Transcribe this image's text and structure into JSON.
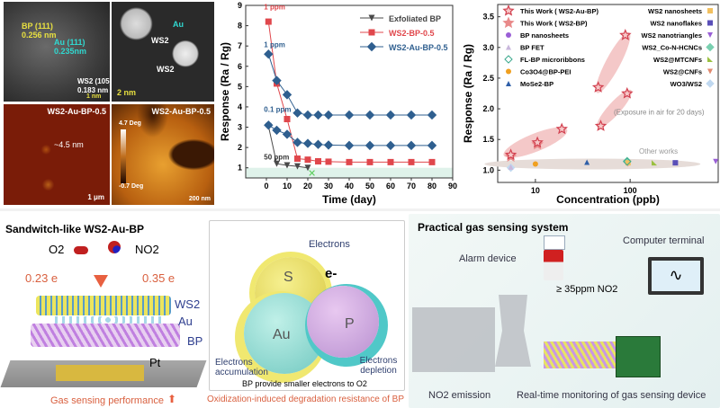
{
  "micrographs": {
    "tem": {
      "bp_label": "BP (111)",
      "bp_spacing": "0.256 nm",
      "au_label": "Au (111)",
      "au_spacing": "0.235nm",
      "ws2_label": "WS2 (105)",
      "ws2_spacing": "0.183 nm",
      "scale": "1 nm"
    },
    "haadf": {
      "au_label": "Au",
      "ws2_label_1": "WS2",
      "ws2_label_2": "WS2",
      "scale": "2 nm"
    },
    "afm_height": {
      "title": "WS2-Au-BP-0.5",
      "thickness": "~4.5 nm",
      "scale": "1 μm"
    },
    "afm_phase": {
      "title": "WS2-Au-BP-0.5",
      "scale_max": "4.7 Deg",
      "scale_min": "-0.7 Deg",
      "scale": "200 nm"
    }
  },
  "chart_data": [
    {
      "type": "line",
      "xlabel": "Time (day)",
      "ylabel": "Response (Ra / Rg)",
      "xlim": [
        -10,
        90
      ],
      "ylim": [
        0.5,
        9
      ],
      "xticks": [
        0,
        10,
        20,
        30,
        40,
        50,
        60,
        70,
        80,
        90
      ],
      "yticks": [
        1,
        2,
        3,
        4,
        5,
        6,
        7,
        8,
        9
      ],
      "legend": "top-right",
      "annotations": [
        "1 ppm",
        "1 ppm",
        "0.1 ppm",
        "50 ppm"
      ],
      "series": [
        {
          "name": "Exfoliated BP",
          "color": "#4a4a4a",
          "marker": "triangle-down",
          "x": [
            1,
            5,
            10,
            15,
            20
          ],
          "y": [
            3.05,
            1.2,
            1.12,
            1.07,
            1.0
          ],
          "failure_x": 22,
          "failure_y": 0.75
        },
        {
          "name": "WS2-BP-0.5",
          "color": "#e0474c",
          "marker": "square",
          "x": [
            1,
            5,
            10,
            15,
            20,
            25,
            30,
            40,
            50,
            60,
            70,
            80
          ],
          "y": [
            8.2,
            5.15,
            3.4,
            1.45,
            1.4,
            1.32,
            1.3,
            1.28,
            1.28,
            1.28,
            1.28,
            1.28
          ]
        },
        {
          "name": "WS2-Au-BP-0.5",
          "color": "#2f5f8f",
          "marker": "diamond",
          "x": [
            1,
            5,
            10,
            15,
            20,
            25,
            30,
            40,
            50,
            60,
            70,
            80
          ],
          "y": [
            6.6,
            5.3,
            4.6,
            3.7,
            3.6,
            3.6,
            3.6,
            3.6,
            3.6,
            3.6,
            3.6,
            3.6
          ]
        },
        {
          "name": "",
          "color": "#2f5f8f",
          "marker": "diamond",
          "x": [
            1,
            5,
            10,
            15,
            20,
            25,
            30,
            40,
            50,
            60,
            70,
            80
          ],
          "y": [
            3.1,
            2.85,
            2.65,
            2.25,
            2.2,
            2.15,
            2.12,
            2.1,
            2.1,
            2.1,
            2.1,
            2.1
          ]
        }
      ]
    },
    {
      "type": "scatter",
      "xlabel": "Concentration (ppb)",
      "ylabel": "Response (Ra / Rg)",
      "xscale": "log",
      "xlim": [
        4,
        850
      ],
      "ylim": [
        0.8,
        3.7
      ],
      "xticks": [
        10,
        100
      ],
      "yticks": [
        1.0,
        1.5,
        2.0,
        2.5,
        3.0,
        3.5
      ],
      "annotations": [
        "(Exposure in air for 20 days)",
        "Other works"
      ],
      "series": [
        {
          "name": "This Work ( WS2-Au-BP)",
          "color": "#d2404f",
          "marker": "star-open",
          "x": [
            5.5,
            10.5,
            19,
            46,
            89,
            49,
            93
          ],
          "y": [
            1.25,
            1.45,
            1.67,
            2.35,
            3.2,
            1.72,
            2.25
          ]
        },
        {
          "name": "This Work ( WS2-BP)",
          "color": "#e98a8a",
          "marker": "star",
          "x": [
            5.5,
            10.5
          ],
          "y": [
            1.22,
            1.42
          ]
        },
        {
          "name": "BP nanosheets",
          "color": "#9a5fd6",
          "marker": "circle",
          "x": [
            93
          ],
          "y": [
            2.24
          ]
        },
        {
          "name": "BP FET",
          "color": "#c9b7dc",
          "marker": "triangle",
          "x": [
            5.5
          ],
          "y": [
            1.05
          ]
        },
        {
          "name": "FL-BP microribbons",
          "color": "#3aa88c",
          "marker": "diamond-open",
          "x": [
            93
          ],
          "y": [
            1.14
          ]
        },
        {
          "name": "Co3O4@BP-PEI",
          "color": "#f0a020",
          "marker": "circle",
          "x": [
            10
          ],
          "y": [
            1.1
          ]
        },
        {
          "name": "MoSe2-BP",
          "color": "#2f5fa8",
          "marker": "triangle",
          "x": [
            35
          ],
          "y": [
            1.13
          ]
        },
        {
          "name": "WS2 nanosheets",
          "color": "#f2c060",
          "marker": "square",
          "x": [
            95
          ],
          "y": [
            1.12
          ]
        },
        {
          "name": "WS2 nanoflakes",
          "color": "#5a4fb8",
          "marker": "square",
          "x": [
            300
          ],
          "y": [
            1.12
          ]
        },
        {
          "name": "WS2 nanotriangles",
          "color": "#9a5fd6",
          "marker": "triangle-down",
          "x": [
            800
          ],
          "y": [
            1.14
          ]
        },
        {
          "name": "WS2_Co-N-HCNCs",
          "color": "#7ad0b0",
          "marker": "diamond",
          "x": [
            93
          ],
          "y": [
            1.15
          ]
        },
        {
          "name": "WS2@MTCNFs",
          "color": "#9ac040",
          "marker": "triangle-right",
          "x": [
            180
          ],
          "y": [
            1.12
          ]
        },
        {
          "name": "WS2@CNFs",
          "color": "#e08a70",
          "marker": "triangle-down",
          "x": [
            95
          ],
          "y": [
            1.1
          ]
        },
        {
          "name": "WO3/WS2",
          "color": "#c0d8f0",
          "marker": "diamond",
          "x": [
            5.5
          ],
          "y": [
            1.04
          ]
        }
      ]
    }
  ],
  "sandwich": {
    "title": "Sandwitch-like WS2-Au-BP",
    "o2": "O2",
    "no2": "NO2",
    "charge_o2": "0.23 e",
    "charge_no2": "0.35 e",
    "layer_ws2": "WS2",
    "layer_au": "Au",
    "layer_bp": "BP",
    "electrode": "Pt",
    "footer": "Gas sensing performance"
  },
  "mechanism": {
    "electrons": "Electrons",
    "e_minus": "e-",
    "sphere_s": "S",
    "sphere_au": "Au",
    "sphere_p": "P",
    "accumulation": "Electrons accumulation",
    "depletion": "Electrons depletion",
    "caption": "BP provide smaller electrons to O2",
    "footer": "Oxidization-induced degradation resistance of BP"
  },
  "system": {
    "title": "Practical gas sensing system",
    "alarm": "Alarm device",
    "terminal": "Computer terminal",
    "threshold": "≥ 35ppm NO2",
    "emission": "NO2 emission",
    "monitoring": "Real-time monitoring of gas sensing device"
  },
  "colors": {
    "accent_red": "#d9534f",
    "ws2_au_bp": "#2f5f8f",
    "ws2_bp": "#e0474c",
    "bp": "#4a4a4a"
  }
}
